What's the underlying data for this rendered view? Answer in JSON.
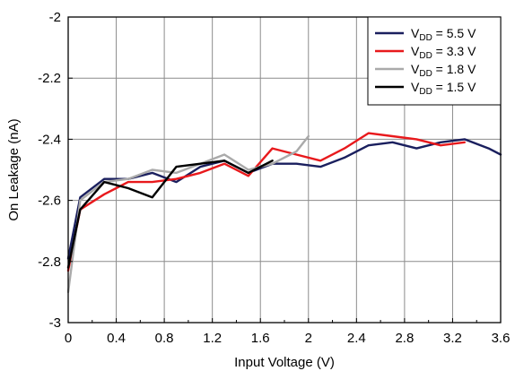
{
  "chart_data": {
    "type": "line",
    "title": "",
    "xlabel": "Input Voltage (V)",
    "ylabel": "On Leakage (nA)",
    "xlim": [
      0,
      3.6
    ],
    "ylim": [
      -3,
      -2
    ],
    "xticks": [
      0,
      0.4,
      0.8,
      1.2,
      1.6,
      2,
      2.4,
      2.8,
      3.2,
      3.6
    ],
    "xtick_labels": [
      "0",
      "0.4",
      "0.8",
      "1.2",
      "1.6",
      "2",
      "2.4",
      "2.8",
      "3.2",
      "3.6"
    ],
    "yticks": [
      -3,
      -2.8,
      -2.6,
      -2.4,
      -2.2,
      -2
    ],
    "ytick_labels": [
      "-3",
      "-2.8",
      "-2.6",
      "-2.4",
      "-2.2",
      "-2"
    ],
    "x_minor_ticks_per_major": 1,
    "grid": true,
    "legend_position": "top-right",
    "series": [
      {
        "legend_prefix": "V",
        "legend_sub": "DD",
        "legend_suffix": " = 5.5 V",
        "color": "#1a1f5e",
        "x": [
          0,
          0.1,
          0.3,
          0.5,
          0.7,
          0.9,
          1.1,
          1.3,
          1.5,
          1.7,
          1.9,
          2.1,
          2.3,
          2.5,
          2.7,
          2.9,
          3.1,
          3.3,
          3.5,
          3.6
        ],
        "y": [
          -2.79,
          -2.59,
          -2.53,
          -2.53,
          -2.51,
          -2.54,
          -2.49,
          -2.47,
          -2.51,
          -2.48,
          -2.48,
          -2.49,
          -2.46,
          -2.42,
          -2.41,
          -2.43,
          -2.41,
          -2.4,
          -2.43,
          -2.45
        ]
      },
      {
        "legend_prefix": "V",
        "legend_sub": "DD",
        "legend_suffix": " = 3.3 V",
        "color": "#e8191c",
        "x": [
          0,
          0.1,
          0.3,
          0.5,
          0.7,
          0.9,
          1.1,
          1.3,
          1.5,
          1.7,
          1.9,
          2.1,
          2.3,
          2.5,
          2.7,
          2.9,
          3.1,
          3.3
        ],
        "y": [
          -2.83,
          -2.63,
          -2.58,
          -2.54,
          -2.54,
          -2.53,
          -2.51,
          -2.48,
          -2.52,
          -2.43,
          -2.45,
          -2.47,
          -2.43,
          -2.38,
          -2.39,
          -2.4,
          -2.42,
          -2.41
        ]
      },
      {
        "legend_prefix": "V",
        "legend_sub": "DD",
        "legend_suffix": " = 1.8 V",
        "color": "#aaaaaa",
        "x": [
          0,
          0.1,
          0.3,
          0.5,
          0.7,
          0.9,
          1.1,
          1.3,
          1.5,
          1.7,
          1.9,
          2.0
        ],
        "y": [
          -2.9,
          -2.6,
          -2.54,
          -2.53,
          -2.5,
          -2.51,
          -2.48,
          -2.45,
          -2.5,
          -2.48,
          -2.44,
          -2.39
        ]
      },
      {
        "legend_prefix": "V",
        "legend_sub": "DD",
        "legend_suffix": " = 1.5 V",
        "color": "#000000",
        "x": [
          0,
          0.1,
          0.3,
          0.5,
          0.7,
          0.9,
          1.1,
          1.3,
          1.5,
          1.7
        ],
        "y": [
          -2.82,
          -2.63,
          -2.54,
          -2.56,
          -2.59,
          -2.49,
          -2.48,
          -2.47,
          -2.51,
          -2.47
        ]
      }
    ]
  }
}
